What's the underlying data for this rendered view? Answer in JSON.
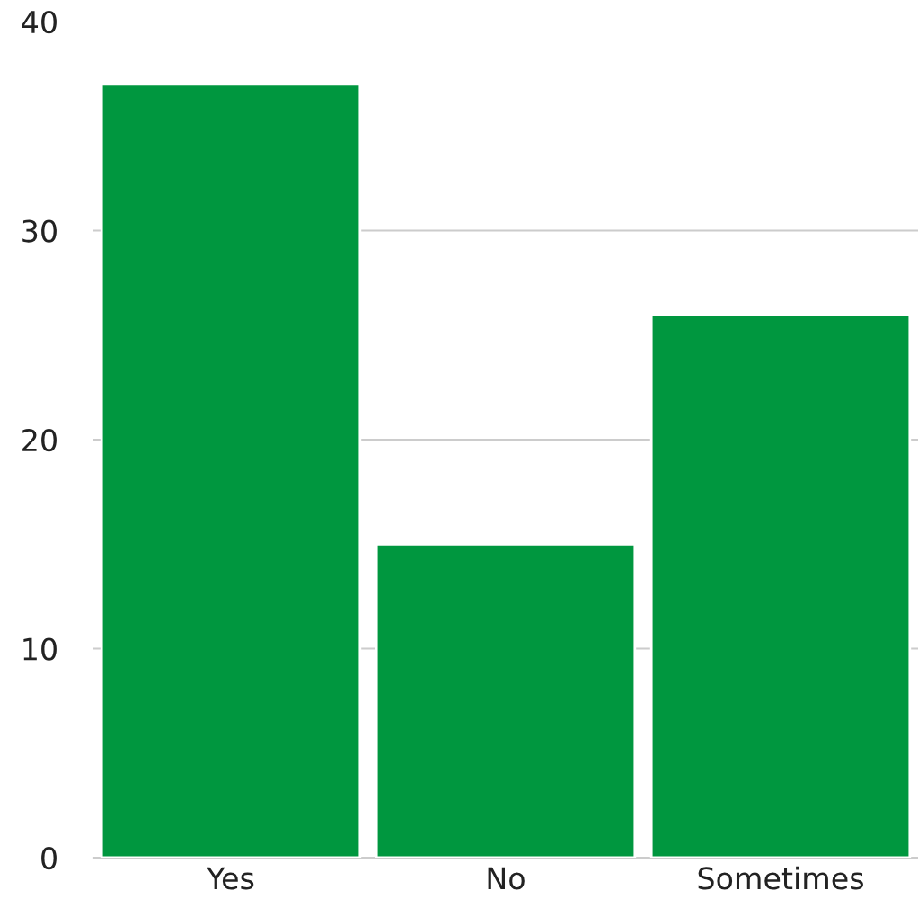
{
  "chart_data": {
    "type": "bar",
    "categories": [
      "Yes",
      "No",
      "Sometimes"
    ],
    "values": [
      37,
      15,
      26
    ],
    "color": "#00973f",
    "ylim": [
      0,
      40
    ],
    "yticks": [
      0,
      10,
      20,
      30,
      40
    ],
    "grid": "y",
    "legend": false
  }
}
